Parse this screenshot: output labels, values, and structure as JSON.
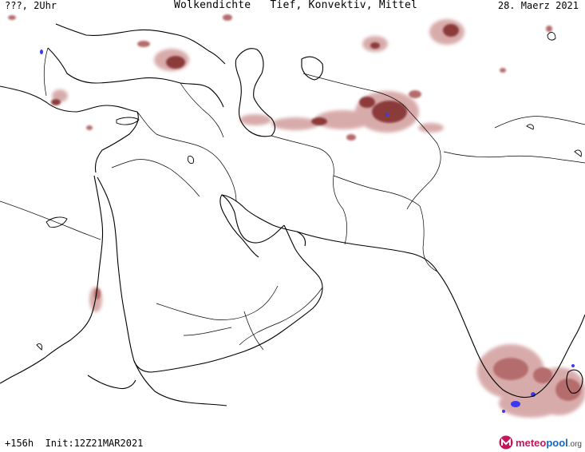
{
  "header": {
    "left_text": "???, 2Uhr",
    "title": "Wolkendichte   Tief, Konvektiv, Mittel",
    "date": "28. Maerz 2021"
  },
  "footer": {
    "run_text": "+156h  Init:12Z21MAR2021",
    "brand_part1": "meteo",
    "brand_part2": "pool",
    "brand_part3": ".org"
  },
  "legend_colors": {
    "cloud_light": "#d4a3a3",
    "cloud_medium": "#b56c6c",
    "cloud_dense": "#8c3b3b",
    "convective_core": "#3a3af0",
    "brand_magenta": "#c2185b",
    "brand_blue": "#1565c0"
  },
  "map_icons": [
    "meteopool-logo-icon"
  ]
}
